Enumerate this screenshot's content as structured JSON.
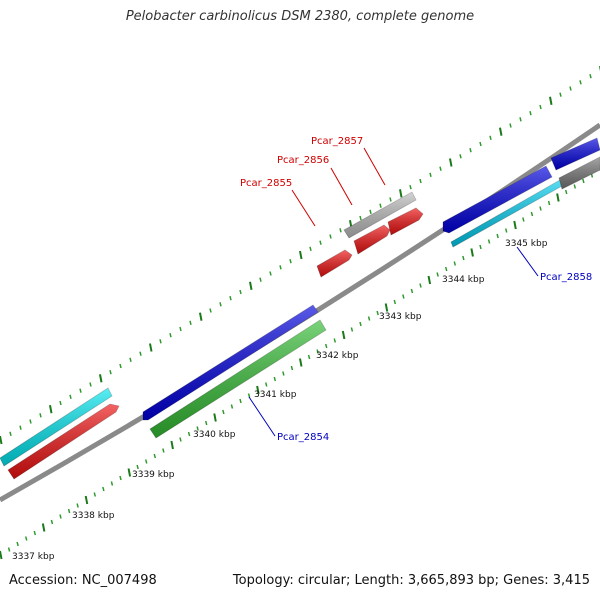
{
  "title": "Pelobacter carbinolicus DSM 2380, complete genome",
  "footer": {
    "accession": "Accession: NC_007498",
    "summary": "Topology: circular; Length: 3,665,893 bp; Genes: 3,415"
  },
  "colors": {
    "backbone": "#8a8a8a",
    "tick_major": "#1a7a1a",
    "tick_minor": "#2e9a2e",
    "label_forward": "#d00000",
    "label_reverse": "#0000c0",
    "leader_forward": "#d00000",
    "leader_reverse": "#0000c0"
  },
  "axis": {
    "unit": "kbp",
    "labels": [
      "3337 kbp",
      "3338 kbp",
      "3339 kbp",
      "3340 kbp",
      "3341 kbp",
      "3342 kbp",
      "3343 kbp",
      "3344 kbp",
      "3345 kbp"
    ]
  },
  "genes": [
    {
      "name": "",
      "color": "#00e5ee",
      "strand": "outer-top"
    },
    {
      "name": "",
      "color": "#ee1111",
      "strand": "forward"
    },
    {
      "name": "",
      "color": "#0000dd",
      "strand": "reverse"
    },
    {
      "name": "Pcar_2854",
      "color": "#33bb33",
      "strand": "reverse"
    },
    {
      "name": "Pcar_2855",
      "color": "#ee1111",
      "strand": "forward"
    },
    {
      "name": "Pcar_2856",
      "color": "#ee1111",
      "strand": "forward"
    },
    {
      "name": "Pcar_2857",
      "color": "#ee1111",
      "strand": "forward"
    },
    {
      "name": "",
      "color": "#bbbbbb",
      "strand": "forward-top"
    },
    {
      "name": "",
      "color": "#0000dd",
      "strand": "reverse"
    },
    {
      "name": "Pcar_2858",
      "color": "#00ccee",
      "strand": "reverse"
    },
    {
      "name": "",
      "color": "#0000dd",
      "strand": "reverse-far"
    },
    {
      "name": "",
      "color": "#777777",
      "strand": "reverse-far"
    }
  ],
  "gene_labels": [
    {
      "text": "Pcar_2854",
      "strand": "reverse"
    },
    {
      "text": "Pcar_2855",
      "strand": "forward"
    },
    {
      "text": "Pcar_2856",
      "strand": "forward"
    },
    {
      "text": "Pcar_2857",
      "strand": "forward"
    },
    {
      "text": "Pcar_2858",
      "strand": "reverse"
    }
  ]
}
